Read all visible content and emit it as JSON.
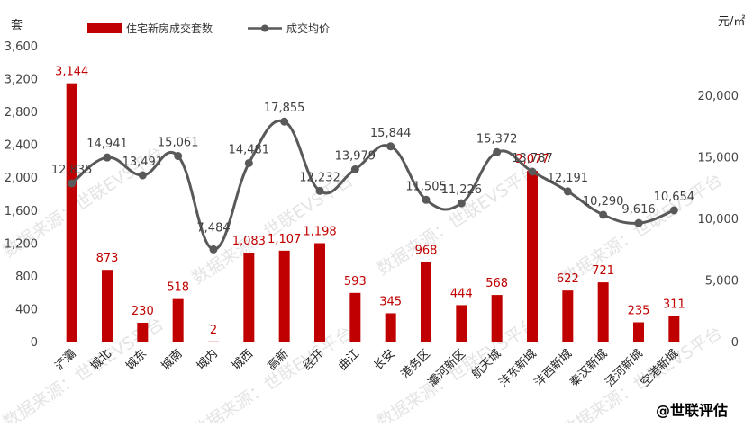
{
  "chart_data": {
    "type": "bar",
    "categories": [
      "浐灞",
      "城北",
      "城东",
      "城南",
      "城内",
      "城西",
      "高新",
      "经开",
      "曲江",
      "长安",
      "港务区",
      "灞河新区",
      "航天城",
      "沣东新城",
      "沣西新城",
      "秦汉新城",
      "泾河新城",
      "空港新城"
    ],
    "series": [
      {
        "name": "住宅新房成交套数",
        "type": "bar",
        "axis": "left",
        "values": [
          3144,
          873,
          230,
          518,
          2,
          1083,
          1107,
          1198,
          593,
          345,
          968,
          444,
          568,
          2077,
          622,
          721,
          235,
          311
        ],
        "labels": [
          "3,144",
          "873",
          "230",
          "518",
          "2",
          "1,083",
          "1,107",
          "1,198",
          "593",
          "345",
          "968",
          "444",
          "568",
          "2,077",
          "622",
          "721",
          "235",
          "311"
        ]
      },
      {
        "name": "成交均价",
        "type": "line",
        "axis": "right",
        "values": [
          12835,
          14941,
          13491,
          15061,
          7484,
          14481,
          17855,
          12232,
          13979,
          15844,
          11505,
          11226,
          15372,
          13787,
          12191,
          10290,
          9616,
          10654
        ],
        "labels": [
          "12,835",
          "14,941",
          "13,491",
          "15,061",
          "7,484",
          "14,481",
          "17,855",
          "12,232",
          "13,979",
          "15,844",
          "11,505",
          "11,226",
          "15,372",
          "13,787",
          "12,191",
          "10,290",
          "9,616",
          "10,654"
        ]
      }
    ],
    "y_left": {
      "label": "套",
      "ylim": [
        0,
        3600
      ],
      "ticks": [
        "0",
        "400",
        "800",
        "1,200",
        "1,600",
        "2,000",
        "2,400",
        "2,800",
        "3,200",
        "3,600"
      ]
    },
    "y_right": {
      "label": "元/㎡",
      "ylim": [
        0,
        24000
      ],
      "ticks": [
        "0",
        "5,000",
        "10,000",
        "15,000",
        "20,000"
      ]
    },
    "grid": false,
    "legend": "top-left",
    "colors": {
      "bar": "#c00000",
      "line": "#595959",
      "bar_label": "#c00000",
      "line_label": "#404040"
    }
  },
  "watermark": "数据来源：世联EVS平台",
  "brand": "@世联评估"
}
